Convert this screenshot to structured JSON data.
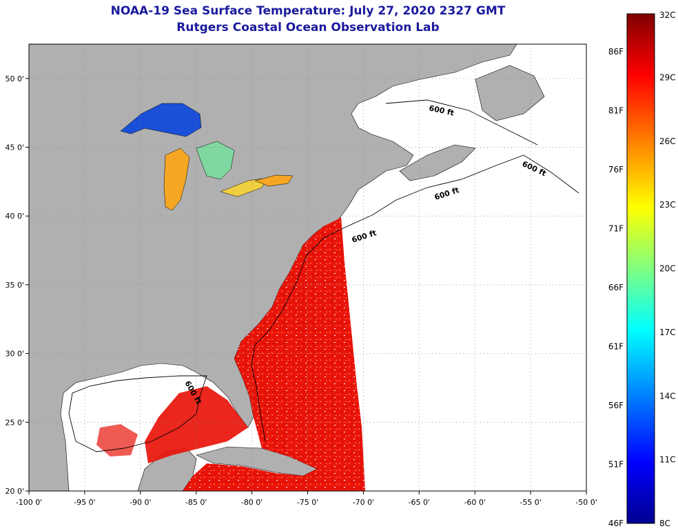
{
  "title": {
    "line1": "NOAA-19 Sea Surface Temperature:  July 27, 2020 2327 GMT",
    "line2": "Rutgers Coastal Ocean Observation Lab"
  },
  "map": {
    "lon_range": [
      -100,
      -50
    ],
    "lat_range": [
      20,
      52.5
    ],
    "lon_ticks": [
      {
        "value": -100,
        "label": "-100 0'"
      },
      {
        "value": -95,
        "label": "-95 0'"
      },
      {
        "value": -90,
        "label": "-90 0'"
      },
      {
        "value": -85,
        "label": "-85 0'"
      },
      {
        "value": -80,
        "label": "-80 0'"
      },
      {
        "value": -75,
        "label": "-75 0'"
      },
      {
        "value": -70,
        "label": "-70 0'"
      },
      {
        "value": -65,
        "label": "-65 0'"
      },
      {
        "value": -60,
        "label": "-60 0'"
      },
      {
        "value": -55,
        "label": "-55 0'"
      },
      {
        "value": -50,
        "label": "-50 0'"
      }
    ],
    "lat_ticks": [
      {
        "value": 20,
        "label": "20 0'"
      },
      {
        "value": 25,
        "label": "25 0'"
      },
      {
        "value": 30,
        "label": "30 0'"
      },
      {
        "value": 35,
        "label": "35 0'"
      },
      {
        "value": 40,
        "label": "40 0'"
      },
      {
        "value": 45,
        "label": "45 0'"
      },
      {
        "value": 50,
        "label": "50 0'"
      }
    ],
    "isobath_label": "600 ft",
    "colors": {
      "land": "#b0b0b0",
      "no_data": "#ffffff",
      "sst_warm": "#e8140a",
      "sst_hot": "#c80000",
      "lake_cold": "#1a4fd8",
      "lake_warm": "#f5a623",
      "gridline": "#888888"
    }
  },
  "colorbar": {
    "celsius": [
      "32C",
      "29C",
      "26C",
      "23C",
      "20C",
      "17C",
      "14C",
      "11C",
      "8C"
    ],
    "fahrenheit": [
      "86F",
      "81F",
      "76F",
      "71F",
      "66F",
      "61F",
      "56F",
      "51F",
      "46F"
    ],
    "stops": [
      "#7f0000",
      "#ff0000",
      "#ff8000",
      "#ffff00",
      "#80ff80",
      "#00ffff",
      "#0080ff",
      "#0000ff",
      "#00008f"
    ]
  }
}
